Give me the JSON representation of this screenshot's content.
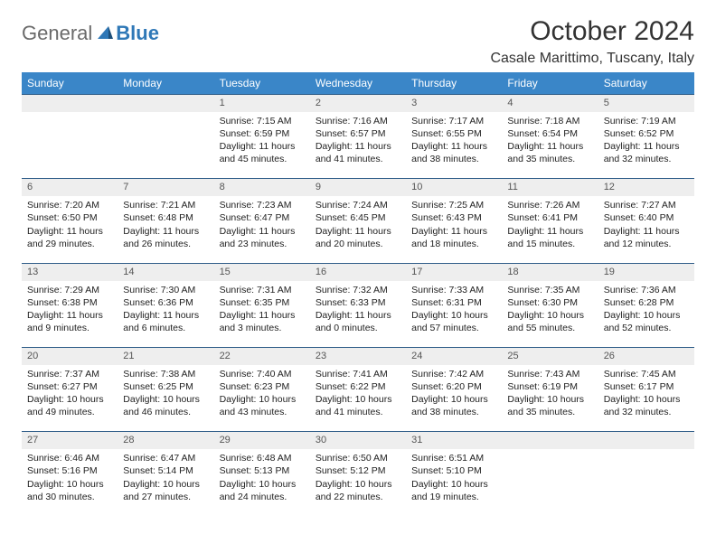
{
  "brand": {
    "part1": "General",
    "part2": "Blue"
  },
  "title": "October 2024",
  "subtitle": "Casale Marittimo, Tuscany, Italy",
  "colors": {
    "header_bg": "#3a86c8",
    "row_border": "#2f5d88",
    "daynum_bg": "#eeeeee"
  },
  "daysOfWeek": [
    "Sunday",
    "Monday",
    "Tuesday",
    "Wednesday",
    "Thursday",
    "Friday",
    "Saturday"
  ],
  "weeks": [
    [
      null,
      null,
      {
        "n": "1",
        "sr": "7:15 AM",
        "ss": "6:59 PM",
        "dl": "11 hours and 45 minutes."
      },
      {
        "n": "2",
        "sr": "7:16 AM",
        "ss": "6:57 PM",
        "dl": "11 hours and 41 minutes."
      },
      {
        "n": "3",
        "sr": "7:17 AM",
        "ss": "6:55 PM",
        "dl": "11 hours and 38 minutes."
      },
      {
        "n": "4",
        "sr": "7:18 AM",
        "ss": "6:54 PM",
        "dl": "11 hours and 35 minutes."
      },
      {
        "n": "5",
        "sr": "7:19 AM",
        "ss": "6:52 PM",
        "dl": "11 hours and 32 minutes."
      }
    ],
    [
      {
        "n": "6",
        "sr": "7:20 AM",
        "ss": "6:50 PM",
        "dl": "11 hours and 29 minutes."
      },
      {
        "n": "7",
        "sr": "7:21 AM",
        "ss": "6:48 PM",
        "dl": "11 hours and 26 minutes."
      },
      {
        "n": "8",
        "sr": "7:23 AM",
        "ss": "6:47 PM",
        "dl": "11 hours and 23 minutes."
      },
      {
        "n": "9",
        "sr": "7:24 AM",
        "ss": "6:45 PM",
        "dl": "11 hours and 20 minutes."
      },
      {
        "n": "10",
        "sr": "7:25 AM",
        "ss": "6:43 PM",
        "dl": "11 hours and 18 minutes."
      },
      {
        "n": "11",
        "sr": "7:26 AM",
        "ss": "6:41 PM",
        "dl": "11 hours and 15 minutes."
      },
      {
        "n": "12",
        "sr": "7:27 AM",
        "ss": "6:40 PM",
        "dl": "11 hours and 12 minutes."
      }
    ],
    [
      {
        "n": "13",
        "sr": "7:29 AM",
        "ss": "6:38 PM",
        "dl": "11 hours and 9 minutes."
      },
      {
        "n": "14",
        "sr": "7:30 AM",
        "ss": "6:36 PM",
        "dl": "11 hours and 6 minutes."
      },
      {
        "n": "15",
        "sr": "7:31 AM",
        "ss": "6:35 PM",
        "dl": "11 hours and 3 minutes."
      },
      {
        "n": "16",
        "sr": "7:32 AM",
        "ss": "6:33 PM",
        "dl": "11 hours and 0 minutes."
      },
      {
        "n": "17",
        "sr": "7:33 AM",
        "ss": "6:31 PM",
        "dl": "10 hours and 57 minutes."
      },
      {
        "n": "18",
        "sr": "7:35 AM",
        "ss": "6:30 PM",
        "dl": "10 hours and 55 minutes."
      },
      {
        "n": "19",
        "sr": "7:36 AM",
        "ss": "6:28 PM",
        "dl": "10 hours and 52 minutes."
      }
    ],
    [
      {
        "n": "20",
        "sr": "7:37 AM",
        "ss": "6:27 PM",
        "dl": "10 hours and 49 minutes."
      },
      {
        "n": "21",
        "sr": "7:38 AM",
        "ss": "6:25 PM",
        "dl": "10 hours and 46 minutes."
      },
      {
        "n": "22",
        "sr": "7:40 AM",
        "ss": "6:23 PM",
        "dl": "10 hours and 43 minutes."
      },
      {
        "n": "23",
        "sr": "7:41 AM",
        "ss": "6:22 PM",
        "dl": "10 hours and 41 minutes."
      },
      {
        "n": "24",
        "sr": "7:42 AM",
        "ss": "6:20 PM",
        "dl": "10 hours and 38 minutes."
      },
      {
        "n": "25",
        "sr": "7:43 AM",
        "ss": "6:19 PM",
        "dl": "10 hours and 35 minutes."
      },
      {
        "n": "26",
        "sr": "7:45 AM",
        "ss": "6:17 PM",
        "dl": "10 hours and 32 minutes."
      }
    ],
    [
      {
        "n": "27",
        "sr": "6:46 AM",
        "ss": "5:16 PM",
        "dl": "10 hours and 30 minutes."
      },
      {
        "n": "28",
        "sr": "6:47 AM",
        "ss": "5:14 PM",
        "dl": "10 hours and 27 minutes."
      },
      {
        "n": "29",
        "sr": "6:48 AM",
        "ss": "5:13 PM",
        "dl": "10 hours and 24 minutes."
      },
      {
        "n": "30",
        "sr": "6:50 AM",
        "ss": "5:12 PM",
        "dl": "10 hours and 22 minutes."
      },
      {
        "n": "31",
        "sr": "6:51 AM",
        "ss": "5:10 PM",
        "dl": "10 hours and 19 minutes."
      },
      null,
      null
    ]
  ],
  "labels": {
    "sunrise": "Sunrise: ",
    "sunset": "Sunset: ",
    "daylight": "Daylight: "
  }
}
